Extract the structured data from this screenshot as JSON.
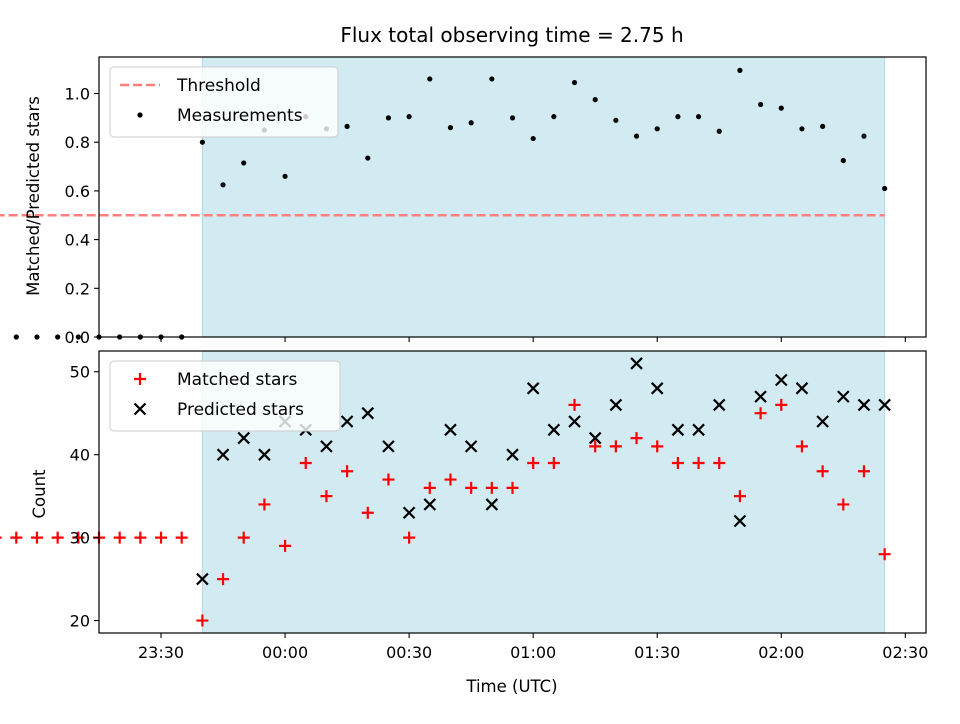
{
  "chart_data": {
    "title": "Flux total observing time = 2.75 h",
    "xlabel": "Time (UTC)",
    "x_unit": "minutes relative to 00:00 UTC",
    "xlim": [
      -45,
      155
    ],
    "x_ticks": [
      {
        "x": -60,
        "label": "23:00"
      },
      {
        "x": -30,
        "label": "23:30"
      },
      {
        "x": 0,
        "label": "00:00"
      },
      {
        "x": 30,
        "label": "00:30"
      },
      {
        "x": 60,
        "label": "01:00"
      },
      {
        "x": 90,
        "label": "01:30"
      },
      {
        "x": 120,
        "label": "02:00"
      },
      {
        "x": 150,
        "label": "02:30"
      }
    ],
    "observing_window": {
      "x_start": -20,
      "x_end": 145,
      "color": "#add8e6"
    },
    "top": {
      "type": "scatter",
      "ylabel": "Matched/Predicted stars",
      "ylim": [
        0,
        1.15
      ],
      "y_ticks": [
        "0.0",
        "0.2",
        "0.4",
        "0.6",
        "0.8",
        "1.0"
      ],
      "threshold": {
        "name": "Threshold",
        "y": 0.5,
        "x_start": -70,
        "x_end": 145,
        "color": "#ff7f7f"
      },
      "series": [
        {
          "name": "Measurements",
          "color": "#000000",
          "points": [
            [
              -70,
              0
            ],
            [
              -65,
              0
            ],
            [
              -60,
              0
            ],
            [
              -55,
              0
            ],
            [
              -50,
              0
            ],
            [
              -45,
              0
            ],
            [
              -40,
              0
            ],
            [
              -35,
              0
            ],
            [
              -30,
              0
            ],
            [
              -25,
              0
            ],
            [
              -20,
              0.8
            ],
            [
              -15,
              0.625
            ],
            [
              -10,
              0.715
            ],
            [
              -5,
              0.85
            ],
            [
              0,
              0.66
            ],
            [
              5,
              0.905
            ],
            [
              10,
              0.855
            ],
            [
              15,
              0.865
            ],
            [
              20,
              0.735
            ],
            [
              25,
              0.9
            ],
            [
              30,
              0.905
            ],
            [
              35,
              1.06
            ],
            [
              40,
              0.86
            ],
            [
              45,
              0.88
            ],
            [
              50,
              1.06
            ],
            [
              55,
              0.9
            ],
            [
              60,
              0.815
            ],
            [
              65,
              0.905
            ],
            [
              70,
              1.045
            ],
            [
              75,
              0.975
            ],
            [
              80,
              0.89
            ],
            [
              85,
              0.825
            ],
            [
              90,
              0.855
            ],
            [
              95,
              0.905
            ],
            [
              100,
              0.905
            ],
            [
              105,
              0.845
            ],
            [
              110,
              1.095
            ],
            [
              115,
              0.955
            ],
            [
              120,
              0.94
            ],
            [
              125,
              0.855
            ],
            [
              130,
              0.865
            ],
            [
              135,
              0.725
            ],
            [
              140,
              0.825
            ],
            [
              145,
              0.61
            ]
          ]
        }
      ]
    },
    "bottom": {
      "type": "scatter",
      "ylabel": "Count",
      "ylim": [
        18.5,
        52.5
      ],
      "y_ticks": [
        "20",
        "30",
        "40",
        "50"
      ],
      "series": [
        {
          "name": "Matched stars",
          "marker": "+",
          "color": "#ff0000",
          "points": [
            [
              -70,
              30
            ],
            [
              -65,
              30
            ],
            [
              -60,
              30
            ],
            [
              -55,
              30
            ],
            [
              -50,
              30
            ],
            [
              -45,
              30
            ],
            [
              -40,
              30
            ],
            [
              -35,
              30
            ],
            [
              -30,
              30
            ],
            [
              -25,
              30
            ],
            [
              -20,
              20
            ],
            [
              -15,
              25
            ],
            [
              -10,
              30
            ],
            [
              -5,
              34
            ],
            [
              0,
              29
            ],
            [
              5,
              39
            ],
            [
              10,
              35
            ],
            [
              15,
              38
            ],
            [
              20,
              33
            ],
            [
              25,
              37
            ],
            [
              30,
              30
            ],
            [
              35,
              36
            ],
            [
              40,
              37
            ],
            [
              45,
              36
            ],
            [
              50,
              36
            ],
            [
              55,
              36
            ],
            [
              60,
              39
            ],
            [
              65,
              39
            ],
            [
              70,
              46
            ],
            [
              75,
              41
            ],
            [
              80,
              41
            ],
            [
              85,
              42
            ],
            [
              90,
              41
            ],
            [
              95,
              39
            ],
            [
              100,
              39
            ],
            [
              105,
              39
            ],
            [
              110,
              35
            ],
            [
              115,
              45
            ],
            [
              120,
              46
            ],
            [
              125,
              41
            ],
            [
              130,
              38
            ],
            [
              135,
              34
            ],
            [
              140,
              38
            ],
            [
              145,
              28
            ]
          ]
        },
        {
          "name": "Predicted stars",
          "marker": "x",
          "color": "#000000",
          "points": [
            [
              -20,
              25
            ],
            [
              -15,
              40
            ],
            [
              -10,
              42
            ],
            [
              -5,
              40
            ],
            [
              0,
              44
            ],
            [
              5,
              43
            ],
            [
              10,
              41
            ],
            [
              15,
              44
            ],
            [
              20,
              45
            ],
            [
              25,
              41
            ],
            [
              30,
              33
            ],
            [
              35,
              34
            ],
            [
              40,
              43
            ],
            [
              45,
              41
            ],
            [
              50,
              34
            ],
            [
              55,
              40
            ],
            [
              60,
              48
            ],
            [
              65,
              43
            ],
            [
              70,
              44
            ],
            [
              75,
              42
            ],
            [
              80,
              46
            ],
            [
              85,
              51
            ],
            [
              90,
              48
            ],
            [
              95,
              43
            ],
            [
              100,
              43
            ],
            [
              105,
              46
            ],
            [
              110,
              32
            ],
            [
              115,
              47
            ],
            [
              120,
              49
            ],
            [
              125,
              48
            ],
            [
              130,
              44
            ],
            [
              135,
              47
            ],
            [
              140,
              46
            ],
            [
              145,
              46
            ]
          ]
        }
      ]
    }
  }
}
